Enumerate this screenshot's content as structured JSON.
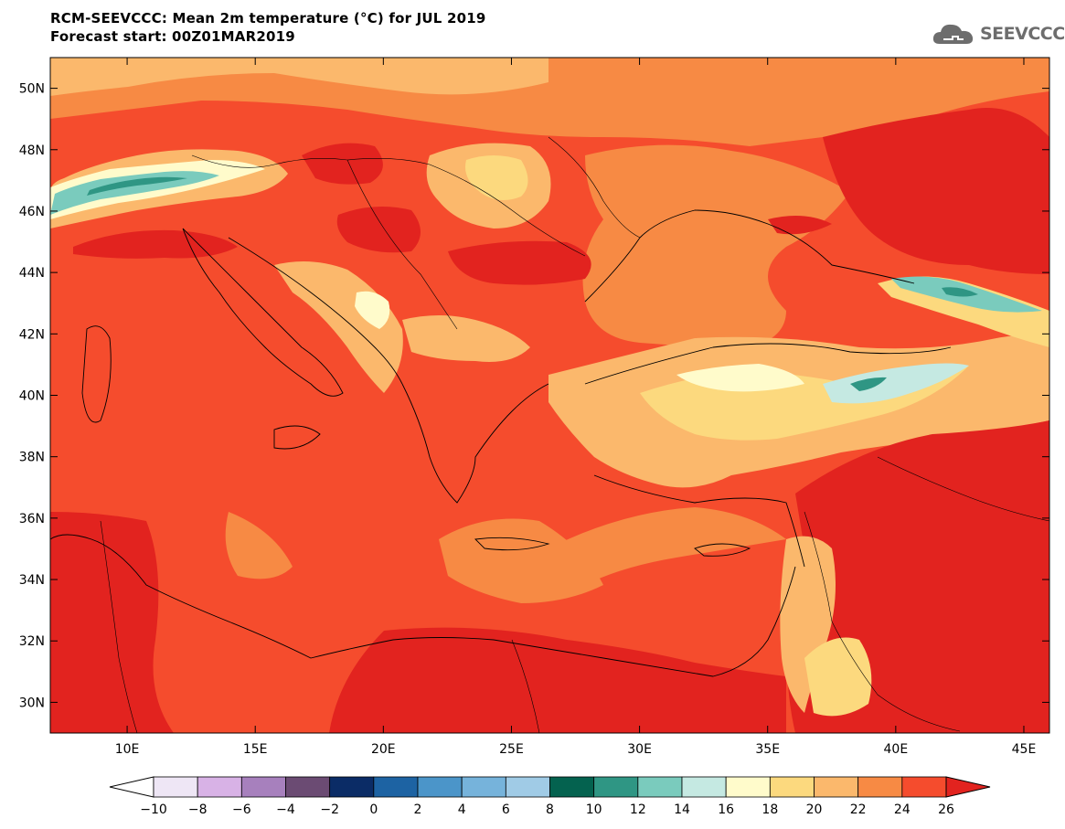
{
  "header": {
    "title_line1": "RCM-SEEVCCC: Mean 2m temperature (°C) for JUL 2019",
    "title_line2": "Forecast start: 00Z01MAR2019"
  },
  "logo": {
    "text": "SEEVCCC",
    "icon": "cloud-icon"
  },
  "map": {
    "type": "filled-contour",
    "variable": "Mean 2m temperature",
    "units": "°C",
    "lon_range": [
      7,
      46
    ],
    "lat_range": [
      29,
      51
    ],
    "lon_ticks": [
      {
        "value": 10,
        "label": "10E"
      },
      {
        "value": 15,
        "label": "15E"
      },
      {
        "value": 20,
        "label": "20E"
      },
      {
        "value": 25,
        "label": "25E"
      },
      {
        "value": 30,
        "label": "30E"
      },
      {
        "value": 35,
        "label": "35E"
      },
      {
        "value": 40,
        "label": "40E"
      },
      {
        "value": 45,
        "label": "45E"
      }
    ],
    "lat_ticks": [
      {
        "value": 30,
        "label": "30N"
      },
      {
        "value": 32,
        "label": "32N"
      },
      {
        "value": 34,
        "label": "34N"
      },
      {
        "value": 36,
        "label": "36N"
      },
      {
        "value": 38,
        "label": "38N"
      },
      {
        "value": 40,
        "label": "40N"
      },
      {
        "value": 42,
        "label": "42N"
      },
      {
        "value": 44,
        "label": "44N"
      },
      {
        "value": 46,
        "label": "46N"
      },
      {
        "value": 48,
        "label": "48N"
      },
      {
        "value": 50,
        "label": "50N"
      }
    ],
    "sea_temp_band": "24-26"
  },
  "colorbar": {
    "levels": [
      -10,
      -8,
      -6,
      -4,
      -2,
      0,
      2,
      4,
      6,
      8,
      10,
      12,
      14,
      16,
      18,
      20,
      22,
      24,
      26
    ],
    "labels": [
      "−10",
      "−8",
      "−6",
      "−4",
      "−2",
      "0",
      "2",
      "4",
      "6",
      "8",
      "10",
      "12",
      "14",
      "16",
      "18",
      "20",
      "22",
      "24",
      "26"
    ],
    "low_extend_color": "#ffffff",
    "high_extend_color": "#e2231f",
    "colors": [
      "#eee6f5",
      "#d8b2e6",
      "#a780bd",
      "#6b4b73",
      "#0b2c66",
      "#1d63a3",
      "#4b95c9",
      "#76b3db",
      "#a0cbe6",
      "#04624f",
      "#2f9684",
      "#7acbbd",
      "#c5e9e2",
      "#fffbcb",
      "#fcd97e",
      "#fbb86c",
      "#f78a44",
      "#f54c2d"
    ]
  }
}
